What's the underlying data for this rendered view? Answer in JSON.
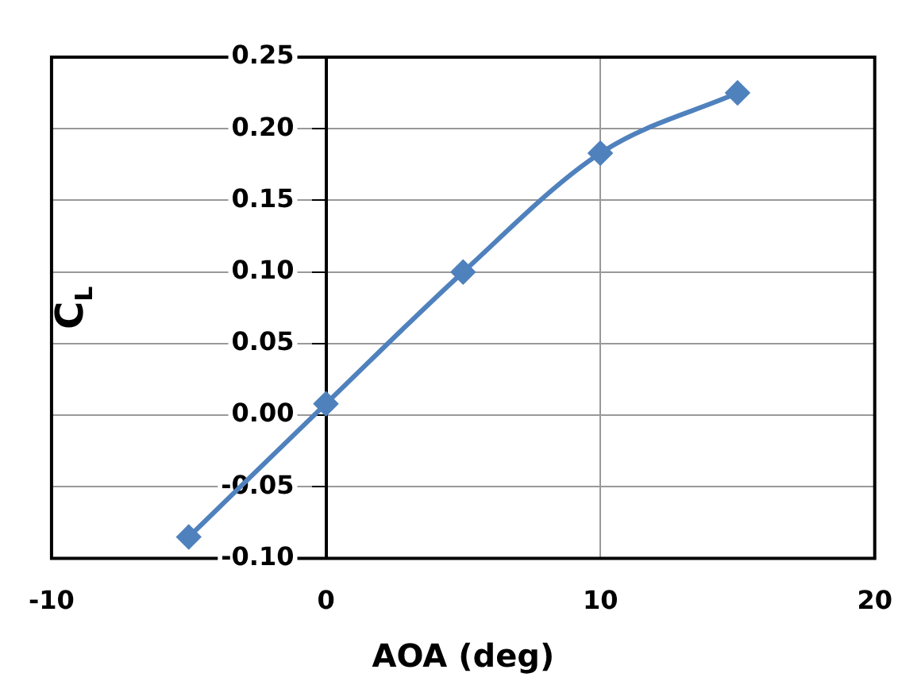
{
  "chart_data": {
    "type": "line",
    "xlabel": "AOA (deg)",
    "ylabel": "C$_{L}$",
    "x": [
      -5,
      0,
      5,
      10,
      15
    ],
    "series": [
      {
        "color": "#4f81bd",
        "values": [
          -0.085,
          0.008,
          0.1,
          0.183,
          0.225
        ]
      }
    ],
    "xlim": [
      -10,
      20
    ],
    "xticks": [
      -10,
      0,
      10,
      20
    ],
    "ylim": [
      -0.1,
      0.25
    ],
    "yticks": [
      {
        "value": -0.1,
        "label": "-0.10"
      },
      {
        "value": -0.05,
        "label": "-0.05"
      },
      {
        "value": 0,
        "label": "0.00"
      },
      {
        "value": 0.05,
        "label": "0.05"
      },
      {
        "value": 0.1,
        "label": "0.10"
      },
      {
        "value": 0.15,
        "label": "0.15"
      },
      {
        "value": 0.2,
        "label": "0.20"
      },
      {
        "value": 0.25,
        "label": "0.25"
      }
    ],
    "grid": true,
    "legend": false,
    "marker": "diamond",
    "line_style": "solid"
  }
}
